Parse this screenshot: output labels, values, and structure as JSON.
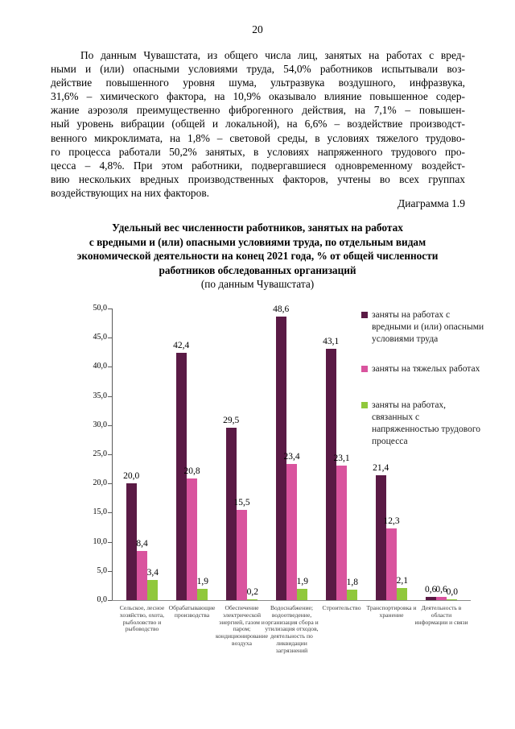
{
  "page": {
    "number": "20"
  },
  "paragraph": {
    "lines": [
      "По данным Чувашстата, из общего числа лиц, занятых на работах с вред-",
      "ными и (или) опасными условиями труда, 54,0% работников испытывали воз-",
      "действие повышенного уровня шума, ультразвука воздушного, инфразвука,",
      "31,6% – химического фактора, на 10,9% оказывало влияние повышенное содер-",
      "жание аэрозоля преимущественно фиброгенного действия, на 7,1% – повышен-",
      "ный уровень вибрации (общей и локальной), на 6,6% – воздействие производст-",
      "венного микроклимата, на 1,8% – световой среды, в условиях тяжелого трудово-",
      "го процесса работали 50,2% занятых, в условиях напряженного трудового про-",
      "цесса – 4,8%. При этом работники, подвергавшиеся одновременному воздейст-",
      "вию нескольких вредных производственных факторов, учтены во всех группах",
      "воздействующих на них факторов."
    ]
  },
  "diagram_label": "Диаграмма 1.9",
  "chart_title": {
    "bold_lines": [
      "Удельный вес численности работников, занятых на работах",
      "с вредными и (или) опасными условиями труда, по отдельным видам",
      "экономической деятельности на конец 2021 года, % от общей численности",
      "работников обследованных организаций"
    ],
    "subtitle": "(по данным Чувашстата)"
  },
  "chart_data": {
    "type": "bar",
    "title": "Удельный вес численности работников, занятых на работах с вредными и (или) опасными условиями труда, по отдельным видам экономической деятельности на конец 2021 года, % от общей численности работников обследованных организаций (по данным Чувашстата)",
    "xlabel": "",
    "ylabel": "",
    "ylim": [
      0,
      50
    ],
    "ytick_step": 5,
    "grid": false,
    "legend_position": "right-inside",
    "decimal_separator": ",",
    "axis_color": "#595959",
    "categories": [
      {
        "label": "Сельское, лесное хозяйство, охота, рыболовство и рыбоводство",
        "lines": [
          "Сельское, лесное",
          "хозяйство, охота,",
          "рыболовство и",
          "рыбоводство"
        ]
      },
      {
        "label": "Обрабатывающие производства",
        "lines": [
          "Обрабатывающие",
          "производства"
        ]
      },
      {
        "label": "Обеспечение электрической энергией, газом и паром; кондиционирование воздуха",
        "lines": [
          "Обеспечение",
          "электрической",
          "энергией, газом и",
          "паром;",
          "кондиционирование",
          "воздуха"
        ]
      },
      {
        "label": "Водоснабжение; водоотведение, организация сбора и утилизация отходов, деятельность по ликвидации загрязнений",
        "lines": [
          "Водоснабжение;",
          "водоотведение,",
          "организация сбора и",
          "утилизация отходов,",
          "деятельность по",
          "ликвидации",
          "загрязнений"
        ]
      },
      {
        "label": "Строительство",
        "lines": [
          "Строительство"
        ]
      },
      {
        "label": "Транспортировка и хранение",
        "lines": [
          "Транспортировка и",
          "хранение"
        ]
      },
      {
        "label": "Деятельность в области информации и связи",
        "lines": [
          "Деятельность в",
          "области",
          "информации и связи"
        ]
      }
    ],
    "series": [
      {
        "name": "заняты на работах с вредными и (или) опасными условиями труда",
        "name_lines": [
          "заняты на работах с",
          "вредными и (или) опасными",
          "условиями труда"
        ],
        "color": "#5A1A45",
        "values": [
          20.0,
          42.4,
          29.5,
          48.6,
          43.1,
          21.4,
          0.6
        ]
      },
      {
        "name": "заняты на тяжелых работах",
        "name_lines": [
          "заняты на тяжелых работах"
        ],
        "color": "#D9549E",
        "values": [
          8.4,
          20.8,
          15.5,
          23.4,
          23.1,
          12.3,
          0.6
        ]
      },
      {
        "name": "заняты на работах, связанных с напряженностью трудового процесса",
        "name_lines": [
          "заняты на работах,",
          "связанных с",
          "напряженностью трудового",
          "процесса"
        ],
        "color": "#90C83C",
        "values": [
          3.4,
          1.9,
          0.2,
          1.9,
          1.8,
          2.1,
          0.0
        ]
      }
    ]
  }
}
